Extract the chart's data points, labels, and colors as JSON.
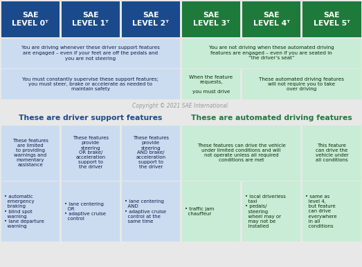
{
  "BLUE_HDR": "#1a4a8c",
  "GREEN_HDR": "#1e7a3a",
  "BLUE_BG": "#ccdcf0",
  "GREEN_BG": "#c8ecd5",
  "OUTER_BG": "#e8e8e8",
  "levels": [
    "SAE\nLEVEL 0ᵀ",
    "SAE\nLEVEL 1ᵀ",
    "SAE\nLEVEL 2ᵀ",
    "SAE\nLEVEL 3ᵀ",
    "SAE\nLEVEL 4ᵀ",
    "SAE\nLEVEL 5ᵀ"
  ],
  "driving_blue": "You are driving whenever these driver support features\nare engaged – even if your feet are off the pedals and\nyou are not steering",
  "driving_green": "You are not driving when these automated driving\nfeatures are engaged – even if you are seated in\n“the driver’s seat”",
  "supervise": "You must constantly supervise these support features;\nyou must steer, brake or accelerate as needed to\nmaintain safety",
  "feature_req": "When the feature\nrequests,\n\nyou must drive",
  "no_override": "These automated driving features\nwill not require you to take\nover driving",
  "section_left": "These are driver support features",
  "section_right": "These are automated driving features",
  "desc0": "These features\nare limited\nto providing\nwarnings and\nmomentary\nassistance",
  "desc1": "These features\nprovide\nsteering\nOR brake/\nacceleration\nsupport to\nthe driver",
  "desc2": "These features\nprovide\nsteering\nAND brake/\nacceleration\nsupport to\nthe driver",
  "desc34": "These features can drive the vehicle\nunder limited conditions and will\nnot operate unless all required\nconditions are met",
  "desc5": "This feature\ncan drive the\nvehicle under\nall conditions",
  "ex0": "• automatic\n  emergency\n  braking\n• blind spot\n  warning\n• lane departure\n  warning",
  "ex1": "• lane centering\n  OR\n• adaptive cruise\n  control",
  "ex2": "• lane centering\n  AND\n• adaptive cruise\n  control at the\n  same time",
  "ex3": "• traffic jam\n  chauffeur",
  "ex4": "• local driverless\n  taxi\n• pedals/\n  steering\n  wheel may or\n  may not be\n  installed",
  "ex5": "• same as\n  level 4,\n  but feature\n  can drive\n  everywhere\n  in all\n  conditions",
  "copyright": "Copyright © 2021 SAE International."
}
